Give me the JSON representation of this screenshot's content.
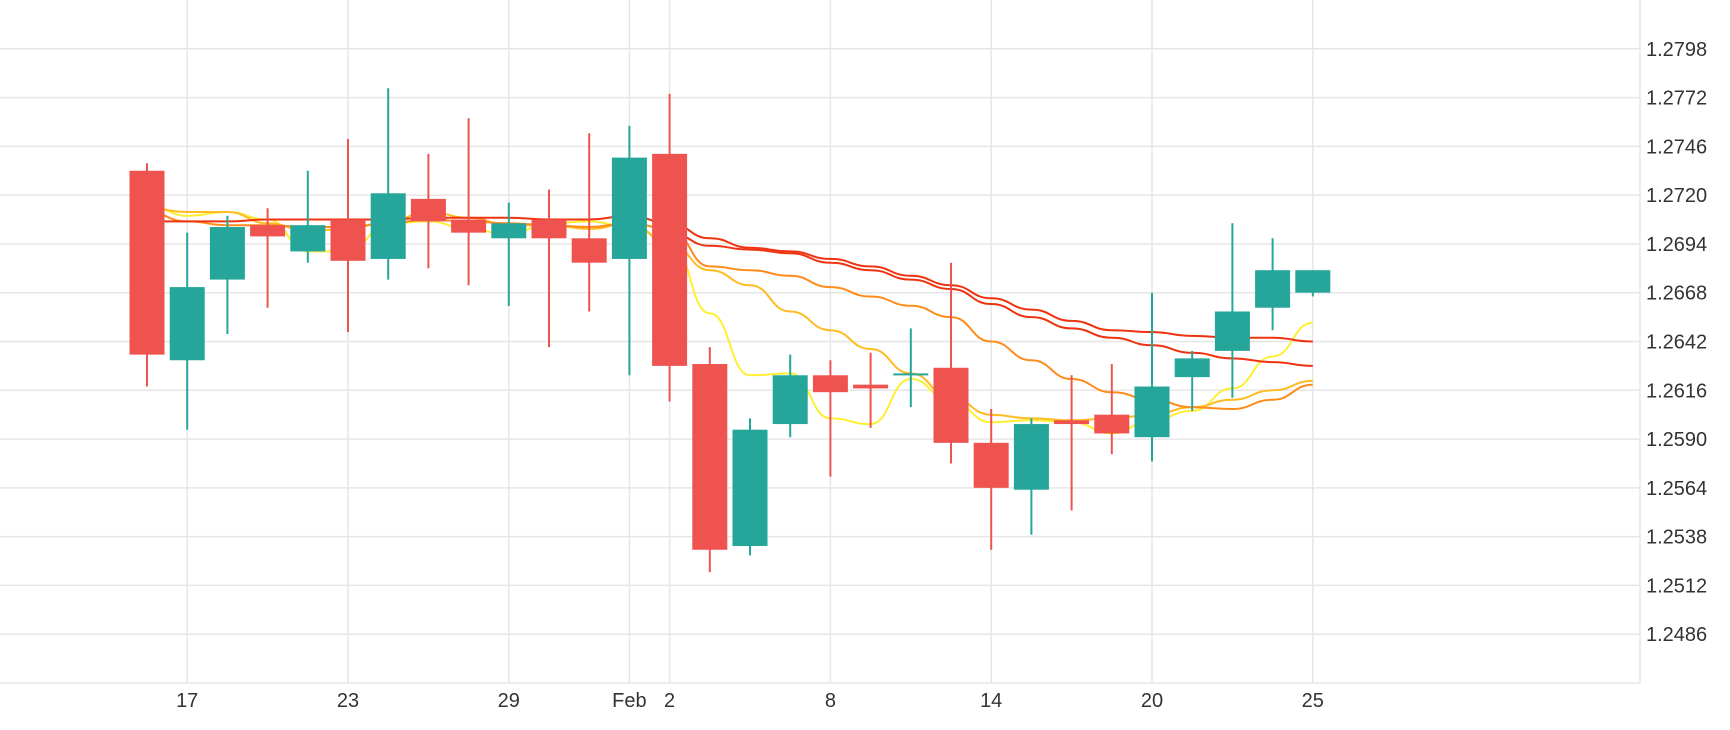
{
  "chart_data": {
    "type": "candlestick",
    "colors": {
      "up": "#26a69a",
      "down": "#ef5350",
      "grid": "#e6e6e6",
      "text": "#333333",
      "ma_colors": [
        "#ffee33",
        "#ffbb22",
        "#ff8c1a",
        "#ee3311"
      ]
    },
    "y_ticks": [
      1.2798,
      1.2772,
      1.2746,
      1.272,
      1.2694,
      1.2668,
      1.2642,
      1.2616,
      1.259,
      1.2564,
      1.2538,
      1.2512,
      1.2486
    ],
    "ylim": [
      1.246,
      1.2824
    ],
    "y_tick_labels": [
      "1.2798",
      "1.2772",
      "1.2746",
      "1.2720",
      "1.2694",
      "1.2668",
      "1.2642",
      "1.2616",
      "1.2590",
      "1.2564",
      "1.2538",
      "1.2512",
      "1.2486"
    ],
    "x_ticks": [
      {
        "index": 1,
        "label": "17"
      },
      {
        "index": 5,
        "label": "23"
      },
      {
        "index": 9,
        "label": "29"
      },
      {
        "index": 12,
        "label": "Feb"
      },
      {
        "index": 13,
        "label": "2"
      },
      {
        "index": 17,
        "label": "8"
      },
      {
        "index": 21,
        "label": "14"
      },
      {
        "index": 25,
        "label": "20"
      },
      {
        "index": 29,
        "label": "25"
      }
    ],
    "candles": [
      {
        "open": 1.2733,
        "high": 1.2737,
        "low": 1.2618,
        "close": 1.2635
      },
      {
        "open": 1.2632,
        "high": 1.27,
        "low": 1.2595,
        "close": 1.2671
      },
      {
        "open": 1.2675,
        "high": 1.2709,
        "low": 1.2646,
        "close": 1.2703
      },
      {
        "open": 1.2704,
        "high": 1.2713,
        "low": 1.266,
        "close": 1.2698
      },
      {
        "open": 1.269,
        "high": 1.2733,
        "low": 1.2684,
        "close": 1.2704
      },
      {
        "open": 1.2707,
        "high": 1.275,
        "low": 1.2647,
        "close": 1.2685
      },
      {
        "open": 1.2686,
        "high": 1.2777,
        "low": 1.2675,
        "close": 1.2721
      },
      {
        "open": 1.2718,
        "high": 1.2742,
        "low": 1.2681,
        "close": 1.2706
      },
      {
        "open": 1.2707,
        "high": 1.2761,
        "low": 1.2672,
        "close": 1.27
      },
      {
        "open": 1.2697,
        "high": 1.2716,
        "low": 1.2661,
        "close": 1.2705
      },
      {
        "open": 1.2707,
        "high": 1.2723,
        "low": 1.2639,
        "close": 1.2697
      },
      {
        "open": 1.2697,
        "high": 1.2753,
        "low": 1.2658,
        "close": 1.2684
      },
      {
        "open": 1.2686,
        "high": 1.2757,
        "low": 1.2624,
        "close": 1.274
      },
      {
        "open": 1.2742,
        "high": 1.2774,
        "low": 1.261,
        "close": 1.2629
      },
      {
        "open": 1.263,
        "high": 1.2639,
        "low": 1.2519,
        "close": 1.2531
      },
      {
        "open": 1.2533,
        "high": 1.2601,
        "low": 1.2528,
        "close": 1.2595
      },
      {
        "open": 1.2598,
        "high": 1.2635,
        "low": 1.2591,
        "close": 1.2624
      },
      {
        "open": 1.2624,
        "high": 1.2632,
        "low": 1.257,
        "close": 1.2615
      },
      {
        "open": 1.2619,
        "high": 1.2636,
        "low": 1.2596,
        "close": 1.2617
      },
      {
        "open": 1.2625,
        "high": 1.2649,
        "low": 1.2607,
        "close": 1.2625
      },
      {
        "open": 1.2628,
        "high": 1.2684,
        "low": 1.2577,
        "close": 1.2588
      },
      {
        "open": 1.2588,
        "high": 1.2606,
        "low": 1.2531,
        "close": 1.2564
      },
      {
        "open": 1.2563,
        "high": 1.2601,
        "low": 1.2539,
        "close": 1.2598
      },
      {
        "open": 1.26,
        "high": 1.2624,
        "low": 1.2552,
        "close": 1.2598
      },
      {
        "open": 1.2603,
        "high": 1.263,
        "low": 1.2582,
        "close": 1.2593
      },
      {
        "open": 1.2591,
        "high": 1.2668,
        "low": 1.2578,
        "close": 1.2618
      },
      {
        "open": 1.2623,
        "high": 1.2637,
        "low": 1.2605,
        "close": 1.2633
      },
      {
        "open": 1.2637,
        "high": 1.2705,
        "low": 1.2612,
        "close": 1.2658
      },
      {
        "open": 1.266,
        "high": 1.2697,
        "low": 1.2648,
        "close": 1.268
      },
      {
        "open": 1.2668,
        "high": 1.268,
        "low": 1.2666,
        "close": 1.268
      }
    ],
    "moving_averages": [
      {
        "values": [
          1.2715,
          1.2709,
          1.2711,
          1.2707,
          1.269,
          1.269,
          1.2705,
          1.2706,
          1.2702,
          1.2699,
          1.2705,
          1.2706,
          1.2703,
          1.2696,
          1.2657,
          1.2624,
          1.2625,
          1.2601,
          1.2598,
          1.2622,
          1.261,
          1.2599,
          1.26,
          1.2599,
          1.2593,
          1.26,
          1.2605,
          1.2617,
          1.2634,
          1.2652
        ]
      },
      {
        "values": [
          1.2713,
          1.2711,
          1.2711,
          1.2705,
          1.2701,
          1.2702,
          1.2706,
          1.2711,
          1.2708,
          1.2704,
          1.2704,
          1.2702,
          1.2705,
          1.2694,
          1.268,
          1.2672,
          1.2658,
          1.2648,
          1.2638,
          1.2625,
          1.2612,
          1.2603,
          1.2601,
          1.26,
          1.2601,
          1.2603,
          1.2607,
          1.2611,
          1.2616,
          1.2621
        ]
      },
      {
        "values": [
          1.2711,
          1.2706,
          1.2704,
          1.2704,
          1.2703,
          1.2703,
          1.2705,
          1.2707,
          1.2706,
          1.2705,
          1.2704,
          1.2703,
          1.2705,
          1.2702,
          1.2682,
          1.268,
          1.2677,
          1.2671,
          1.2666,
          1.2661,
          1.2655,
          1.2642,
          1.2632,
          1.2622,
          1.2615,
          1.2611,
          1.2607,
          1.2606,
          1.2611,
          1.2619
        ]
      },
      {
        "values": [
          1.2706,
          1.2706,
          1.2706,
          1.2707,
          1.2707,
          1.2707,
          1.2707,
          1.2708,
          1.2708,
          1.2708,
          1.2707,
          1.2707,
          1.2709,
          1.2705,
          1.2697,
          1.2692,
          1.269,
          1.2686,
          1.2682,
          1.2677,
          1.2672,
          1.2665,
          1.2659,
          1.2653,
          1.2648,
          1.2647,
          1.2645,
          1.2644,
          1.2644,
          1.2642
        ]
      },
      {
        "values": [
          null,
          null,
          null,
          null,
          null,
          null,
          null,
          null,
          null,
          null,
          null,
          null,
          null,
          1.27,
          1.2693,
          1.2691,
          1.2689,
          1.2684,
          1.268,
          1.2675,
          1.267,
          1.2662,
          1.2655,
          1.2649,
          1.2644,
          1.264,
          1.2636,
          1.2633,
          1.2631,
          1.2629
        ]
      }
    ]
  }
}
